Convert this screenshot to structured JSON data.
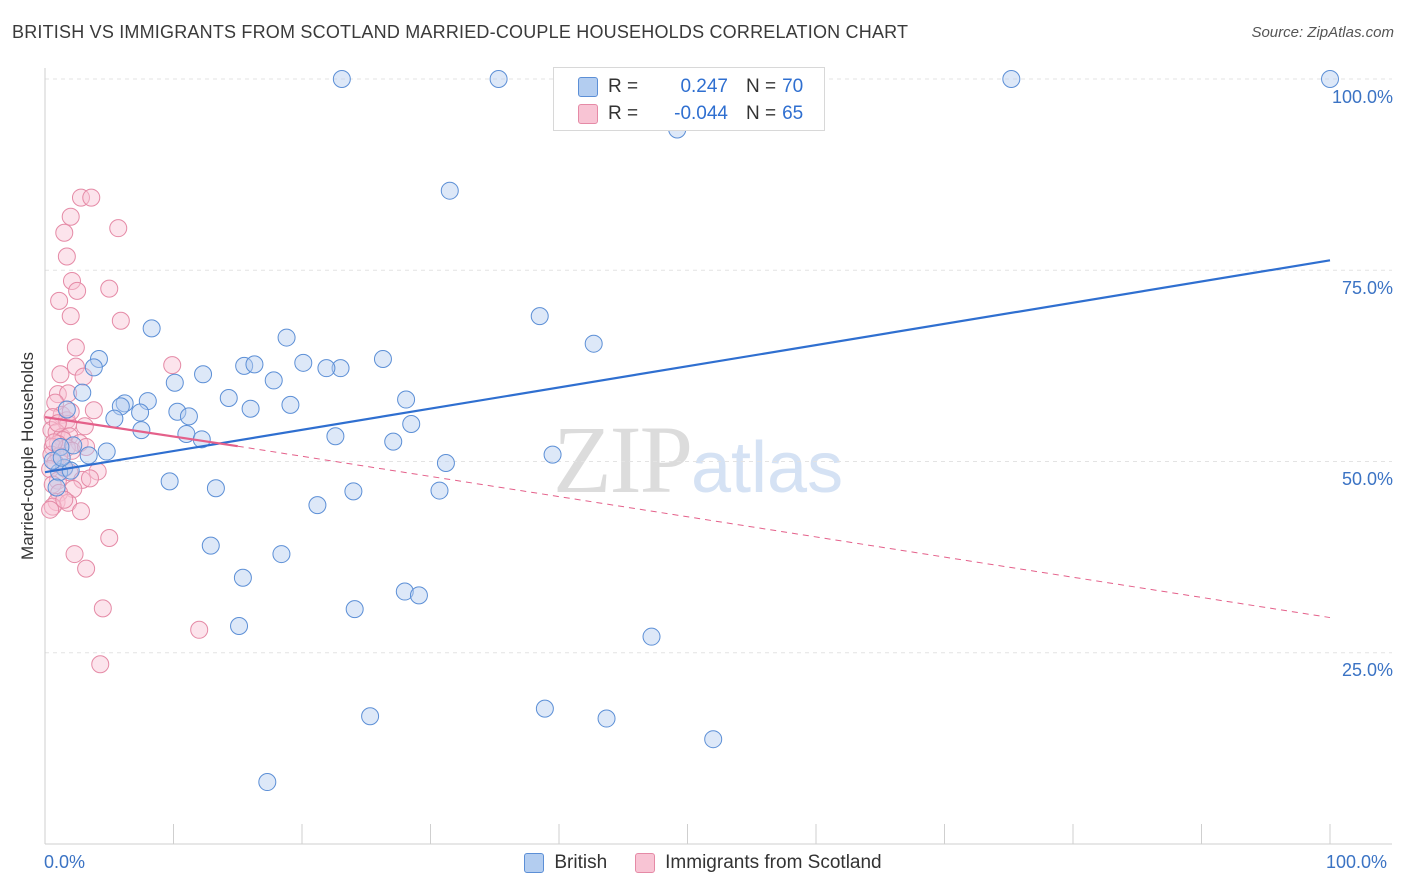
{
  "header": {
    "title": "BRITISH VS IMMIGRANTS FROM SCOTLAND MARRIED-COUPLE HOUSEHOLDS CORRELATION CHART",
    "source": "Source: ZipAtlas.com"
  },
  "watermark": {
    "zip": "ZIP",
    "atlas": "atlas"
  },
  "legend_top": {
    "british": {
      "r_label": "R =",
      "r_value": "0.247",
      "n_label": "N =",
      "n_value": "70"
    },
    "scotland": {
      "r_label": "R =",
      "r_value": "-0.044",
      "n_label": "N =",
      "n_value": "65"
    }
  },
  "legend_bottom": {
    "british": "British",
    "scotland": "Immigrants from Scotland"
  },
  "colors": {
    "british_fill": "#b3cdf0",
    "british_stroke": "#5c8fd6",
    "british_line": "#2f6fd0",
    "scotland_fill": "#f8c4d4",
    "scotland_stroke": "#e58aa6",
    "scotland_line": "#e4608a",
    "grid": "#e3e3e3",
    "tick_text": "#3b73c4"
  },
  "chart_data": {
    "type": "scatter",
    "title": "BRITISH VS IMMIGRANTS FROM SCOTLAND MARRIED-COUPLE HOUSEHOLDS CORRELATION CHART",
    "xlabel": "",
    "ylabel": "Married-couple Households",
    "xlim": [
      0,
      100
    ],
    "ylim": [
      0,
      100
    ],
    "x_tick_labels": [
      "0.0%",
      "100.0%"
    ],
    "y_ticks": [
      25,
      50,
      75,
      100
    ],
    "y_tick_labels": [
      "25.0%",
      "50.0%",
      "75.0%",
      "100.0%"
    ],
    "grid": true,
    "legend_position": "top-center",
    "series": [
      {
        "name": "British",
        "r": 0.247,
        "n": 70,
        "trend": {
          "x": [
            0,
            100
          ],
          "y": [
            48.6,
            76.3
          ],
          "style": "solid"
        },
        "points": [
          [
            23.1,
            100
          ],
          [
            35.3,
            100
          ],
          [
            75.2,
            100
          ],
          [
            100,
            100
          ],
          [
            49.2,
            93.4
          ],
          [
            31.5,
            85.4
          ],
          [
            8.3,
            67.4
          ],
          [
            38.5,
            69.0
          ],
          [
            42.7,
            65.4
          ],
          [
            18.8,
            66.2
          ],
          [
            26.3,
            63.4
          ],
          [
            4.2,
            63.4
          ],
          [
            3.8,
            62.3
          ],
          [
            12.3,
            61.4
          ],
          [
            15.5,
            62.5
          ],
          [
            16.3,
            62.7
          ],
          [
            20.1,
            62.9
          ],
          [
            23.0,
            62.2
          ],
          [
            21.9,
            62.2
          ],
          [
            10.1,
            60.3
          ],
          [
            17.8,
            60.6
          ],
          [
            2.9,
            59.0
          ],
          [
            14.3,
            58.3
          ],
          [
            8.0,
            57.9
          ],
          [
            28.1,
            58.1
          ],
          [
            6.2,
            57.6
          ],
          [
            5.9,
            57.2
          ],
          [
            19.1,
            57.4
          ],
          [
            16.0,
            56.9
          ],
          [
            1.7,
            56.8
          ],
          [
            7.4,
            56.4
          ],
          [
            10.3,
            56.5
          ],
          [
            11.2,
            55.9
          ],
          [
            5.4,
            55.6
          ],
          [
            28.5,
            54.9
          ],
          [
            7.5,
            54.1
          ],
          [
            11.0,
            53.6
          ],
          [
            22.6,
            53.3
          ],
          [
            27.1,
            52.6
          ],
          [
            2.2,
            52.1
          ],
          [
            1.2,
            51.9
          ],
          [
            12.2,
            52.9
          ],
          [
            39.5,
            50.9
          ],
          [
            31.2,
            49.8
          ],
          [
            1.5,
            49.2
          ],
          [
            1.1,
            48.6
          ],
          [
            9.7,
            47.4
          ],
          [
            13.3,
            46.5
          ],
          [
            24.0,
            46.1
          ],
          [
            30.7,
            46.2
          ],
          [
            0.9,
            46.6
          ],
          [
            21.2,
            44.3
          ],
          [
            12.9,
            39.0
          ],
          [
            18.4,
            37.9
          ],
          [
            15.4,
            34.8
          ],
          [
            28.0,
            33.0
          ],
          [
            29.1,
            32.5
          ],
          [
            24.1,
            30.7
          ],
          [
            15.1,
            28.5
          ],
          [
            47.2,
            27.1
          ],
          [
            25.3,
            16.7
          ],
          [
            38.9,
            17.7
          ],
          [
            43.7,
            16.4
          ],
          [
            52.0,
            13.7
          ],
          [
            17.3,
            8.1
          ],
          [
            2.0,
            48.8
          ],
          [
            3.4,
            50.8
          ],
          [
            0.6,
            50.1
          ],
          [
            1.3,
            50.5
          ],
          [
            4.8,
            51.3
          ]
        ]
      },
      {
        "name": "Immigrants from Scotland",
        "r": -0.044,
        "n": 65,
        "trend": {
          "x": [
            0,
            15
          ],
          "y": [
            55.8,
            52.0
          ],
          "style": "solid",
          "extended": {
            "x": [
              15,
              100
            ],
            "y": [
              52.0,
              29.6
            ],
            "style": "dashed"
          }
        },
        "points": [
          [
            2.8,
            84.5
          ],
          [
            3.6,
            84.5
          ],
          [
            2.0,
            82.0
          ],
          [
            1.5,
            79.9
          ],
          [
            5.7,
            80.5
          ],
          [
            1.7,
            76.8
          ],
          [
            2.1,
            73.6
          ],
          [
            2.5,
            72.3
          ],
          [
            5.0,
            72.6
          ],
          [
            1.1,
            71.0
          ],
          [
            2.0,
            69.0
          ],
          [
            5.9,
            68.4
          ],
          [
            2.4,
            64.9
          ],
          [
            9.9,
            62.6
          ],
          [
            2.4,
            62.4
          ],
          [
            1.2,
            61.4
          ],
          [
            3.0,
            61.1
          ],
          [
            1.0,
            58.8
          ],
          [
            1.8,
            58.9
          ],
          [
            0.8,
            57.7
          ],
          [
            3.8,
            56.7
          ],
          [
            1.3,
            56.1
          ],
          [
            0.6,
            55.8
          ],
          [
            1.7,
            55.4
          ],
          [
            1.8,
            54.9
          ],
          [
            3.1,
            54.6
          ],
          [
            0.5,
            54.1
          ],
          [
            0.9,
            53.8
          ],
          [
            1.3,
            53.2
          ],
          [
            1.9,
            53.3
          ],
          [
            1.4,
            52.8
          ],
          [
            2.7,
            52.4
          ],
          [
            1.0,
            52.3
          ],
          [
            0.6,
            51.9
          ],
          [
            1.7,
            51.8
          ],
          [
            2.1,
            51.4
          ],
          [
            3.2,
            51.9
          ],
          [
            0.5,
            50.9
          ],
          [
            1.1,
            50.7
          ],
          [
            0.8,
            49.8
          ],
          [
            1.5,
            49.1
          ],
          [
            0.4,
            49.0
          ],
          [
            1.9,
            48.6
          ],
          [
            4.1,
            48.7
          ],
          [
            2.9,
            47.6
          ],
          [
            1.0,
            47.5
          ],
          [
            0.6,
            47.0
          ],
          [
            2.2,
            46.4
          ],
          [
            1.1,
            45.9
          ],
          [
            0.9,
            44.7
          ],
          [
            1.8,
            44.6
          ],
          [
            0.6,
            44.1
          ],
          [
            0.4,
            43.7
          ],
          [
            2.8,
            43.5
          ],
          [
            5.0,
            40.0
          ],
          [
            2.3,
            37.9
          ],
          [
            3.2,
            36.0
          ],
          [
            4.5,
            30.8
          ],
          [
            12.0,
            28.0
          ],
          [
            4.3,
            23.5
          ],
          [
            1.0,
            55.0
          ],
          [
            2.0,
            56.5
          ],
          [
            0.7,
            52.5
          ],
          [
            3.5,
            47.8
          ],
          [
            1.5,
            45.0
          ]
        ]
      }
    ]
  }
}
